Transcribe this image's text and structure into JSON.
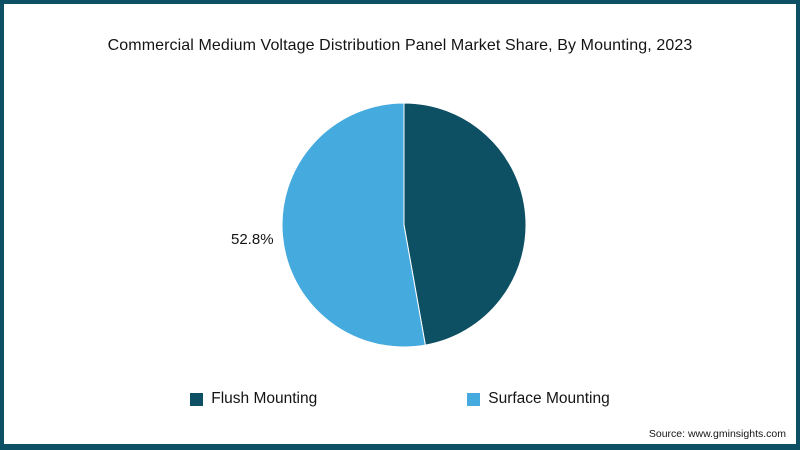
{
  "title": "Commercial Medium Voltage Distribution Panel Market Share, By Mounting, 2023",
  "source": {
    "text": "Source: www.gminsights.com"
  },
  "chart_data": {
    "type": "pie",
    "title": "Commercial Medium Voltage Distribution Panel Market Share, By Mounting, 2023",
    "start_angle_deg": -90,
    "direction": "clockwise",
    "legend_position": "bottom",
    "slices": [
      {
        "label": "Flush Mounting",
        "value": 47.2,
        "color": "#0d4f63",
        "display": ""
      },
      {
        "label": "Surface Mounting",
        "value": 52.8,
        "color": "#45aade",
        "display": "52.8%"
      }
    ]
  }
}
